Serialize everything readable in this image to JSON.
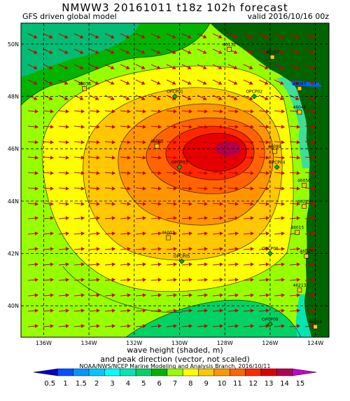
{
  "header": {
    "title": "NMWW3 20161011 t18z   102h forecast",
    "model": "GFS driven global model",
    "valid": "valid 2016/10/16 00z"
  },
  "map": {
    "lat_labels": [
      "50N",
      "48N",
      "46N",
      "44N",
      "42N",
      "40N"
    ],
    "lon_labels": [
      "136W",
      "134W",
      "132W",
      "130W",
      "128W",
      "126W",
      "124W"
    ],
    "buoys": [
      {
        "label": "46036",
        "lon": -134.2,
        "lat": 48.3,
        "kind": "buoy"
      },
      {
        "label": "OPCP01",
        "lon": -130.2,
        "lat": 48.0,
        "kind": "point"
      },
      {
        "label": "OPCP02",
        "lon": -126.7,
        "lat": 48.0,
        "kind": "point"
      },
      {
        "label": "46132",
        "lon": -127.8,
        "lat": 49.8,
        "kind": "buoy"
      },
      {
        "label": "46207",
        "lon": -125.9,
        "lat": 49.5,
        "kind": "buoy"
      },
      {
        "label": "46087",
        "lon": -124.7,
        "lat": 48.3,
        "kind": "buoy"
      },
      {
        "label": "46041",
        "lon": -124.7,
        "lat": 47.4,
        "kind": "buoy"
      },
      {
        "label": "46005",
        "lon": -131.0,
        "lat": 46.1,
        "kind": "buoy"
      },
      {
        "label": "46089",
        "lon": -125.8,
        "lat": 45.9,
        "kind": "buoy"
      },
      {
        "label": "OPCP03",
        "lon": -130.0,
        "lat": 45.3,
        "kind": "point"
      },
      {
        "label": "OPCP04",
        "lon": -125.7,
        "lat": 45.3,
        "kind": "point"
      },
      {
        "label": "46050",
        "lon": -124.5,
        "lat": 44.6,
        "kind": "buoy"
      },
      {
        "label": "46229",
        "lon": -124.5,
        "lat": 43.8,
        "kind": "buoy"
      },
      {
        "label": "46015",
        "lon": -124.8,
        "lat": 42.8,
        "kind": "buoy"
      },
      {
        "label": "46002",
        "lon": -130.5,
        "lat": 42.6,
        "kind": "buoy"
      },
      {
        "label": "OPCP06",
        "lon": -126.0,
        "lat": 42.0,
        "kind": "point"
      },
      {
        "label": "OPCP05",
        "lon": -129.9,
        "lat": 41.7,
        "kind": "point"
      },
      {
        "label": "46027",
        "lon": -124.4,
        "lat": 41.9,
        "kind": "buoy"
      },
      {
        "label": "46213",
        "lon": -124.7,
        "lat": 40.6,
        "kind": "buoy"
      },
      {
        "label": "OPCP08",
        "lon": -126.0,
        "lat": 39.3,
        "kind": "point"
      },
      {
        "label": "46014",
        "lon": -124.0,
        "lat": 39.2,
        "kind": "buoy"
      }
    ]
  },
  "legend": {
    "caption_line1": "wave height (shaded, m)",
    "caption_line2": "and peak direction (vector, not scaled)",
    "credit": "NOAA/NWS/NCEP Marine Modeling and Analysis Branch, 2016/10/11",
    "levels": [
      "0.5",
      "1",
      "1.5",
      "2",
      "3",
      "4",
      "5",
      "6",
      "7",
      "8",
      "9",
      "10",
      "11",
      "12",
      "13",
      "14",
      "15"
    ],
    "colors": [
      "#0000c8",
      "#0050ff",
      "#0096ff",
      "#00c8ff",
      "#00ffff",
      "#00e6b4",
      "#00d264",
      "#00b400",
      "#96ff00",
      "#ffff00",
      "#ffc800",
      "#ff9600",
      "#ff6400",
      "#ff2800",
      "#dc0000",
      "#b40050",
      "#c800c8"
    ]
  }
}
